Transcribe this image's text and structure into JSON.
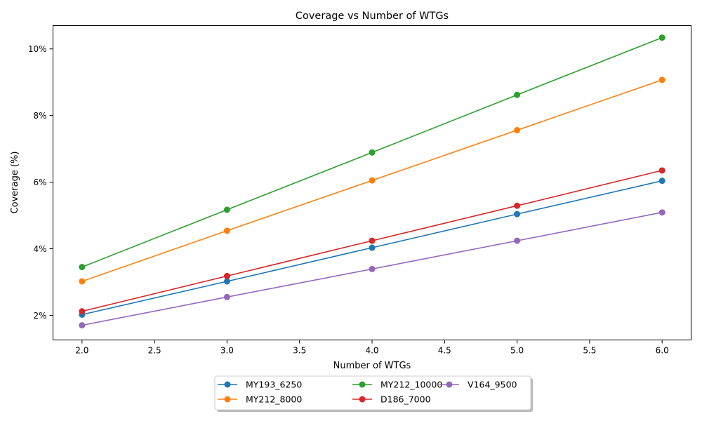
{
  "chart_data": {
    "type": "line",
    "title": "Coverage vs Number of WTGs",
    "xlabel": "Number of WTGs",
    "ylabel": "Coverage (%)",
    "xlim": [
      1.8,
      6.2
    ],
    "ylim": [
      1.26,
      10.7
    ],
    "x_ticks": [
      2.0,
      2.5,
      3.0,
      3.5,
      4.0,
      4.5,
      5.0,
      5.5,
      6.0
    ],
    "x_tick_labels": [
      "2.0",
      "2.5",
      "3.0",
      "3.5",
      "4.0",
      "4.5",
      "5.0",
      "5.5",
      "6.0"
    ],
    "y_ticks": [
      2,
      4,
      6,
      8,
      10
    ],
    "y_tick_labels": [
      "2%",
      "4%",
      "6%",
      "8%",
      "10%"
    ],
    "x": [
      2,
      3,
      4,
      5,
      6
    ],
    "series": [
      {
        "name": "MY193_6250",
        "color": "#1f77b4",
        "values": [
          2.02,
          3.02,
          4.03,
          5.04,
          6.04
        ]
      },
      {
        "name": "MY212_8000",
        "color": "#ff7f0e",
        "values": [
          3.02,
          4.54,
          6.05,
          7.56,
          9.07
        ]
      },
      {
        "name": "MY212_10000",
        "color": "#2ca02c",
        "values": [
          3.45,
          5.17,
          6.89,
          8.62,
          10.34
        ]
      },
      {
        "name": "D186_7000",
        "color": "#d62728",
        "values": [
          2.12,
          3.18,
          4.24,
          5.29,
          6.35
        ]
      },
      {
        "name": "V164_9500",
        "color": "#9467bd",
        "values": [
          1.7,
          2.55,
          3.39,
          4.24,
          5.09
        ]
      }
    ],
    "legend": {
      "placement": "bottom-center",
      "columns": 3
    },
    "grid": false
  }
}
